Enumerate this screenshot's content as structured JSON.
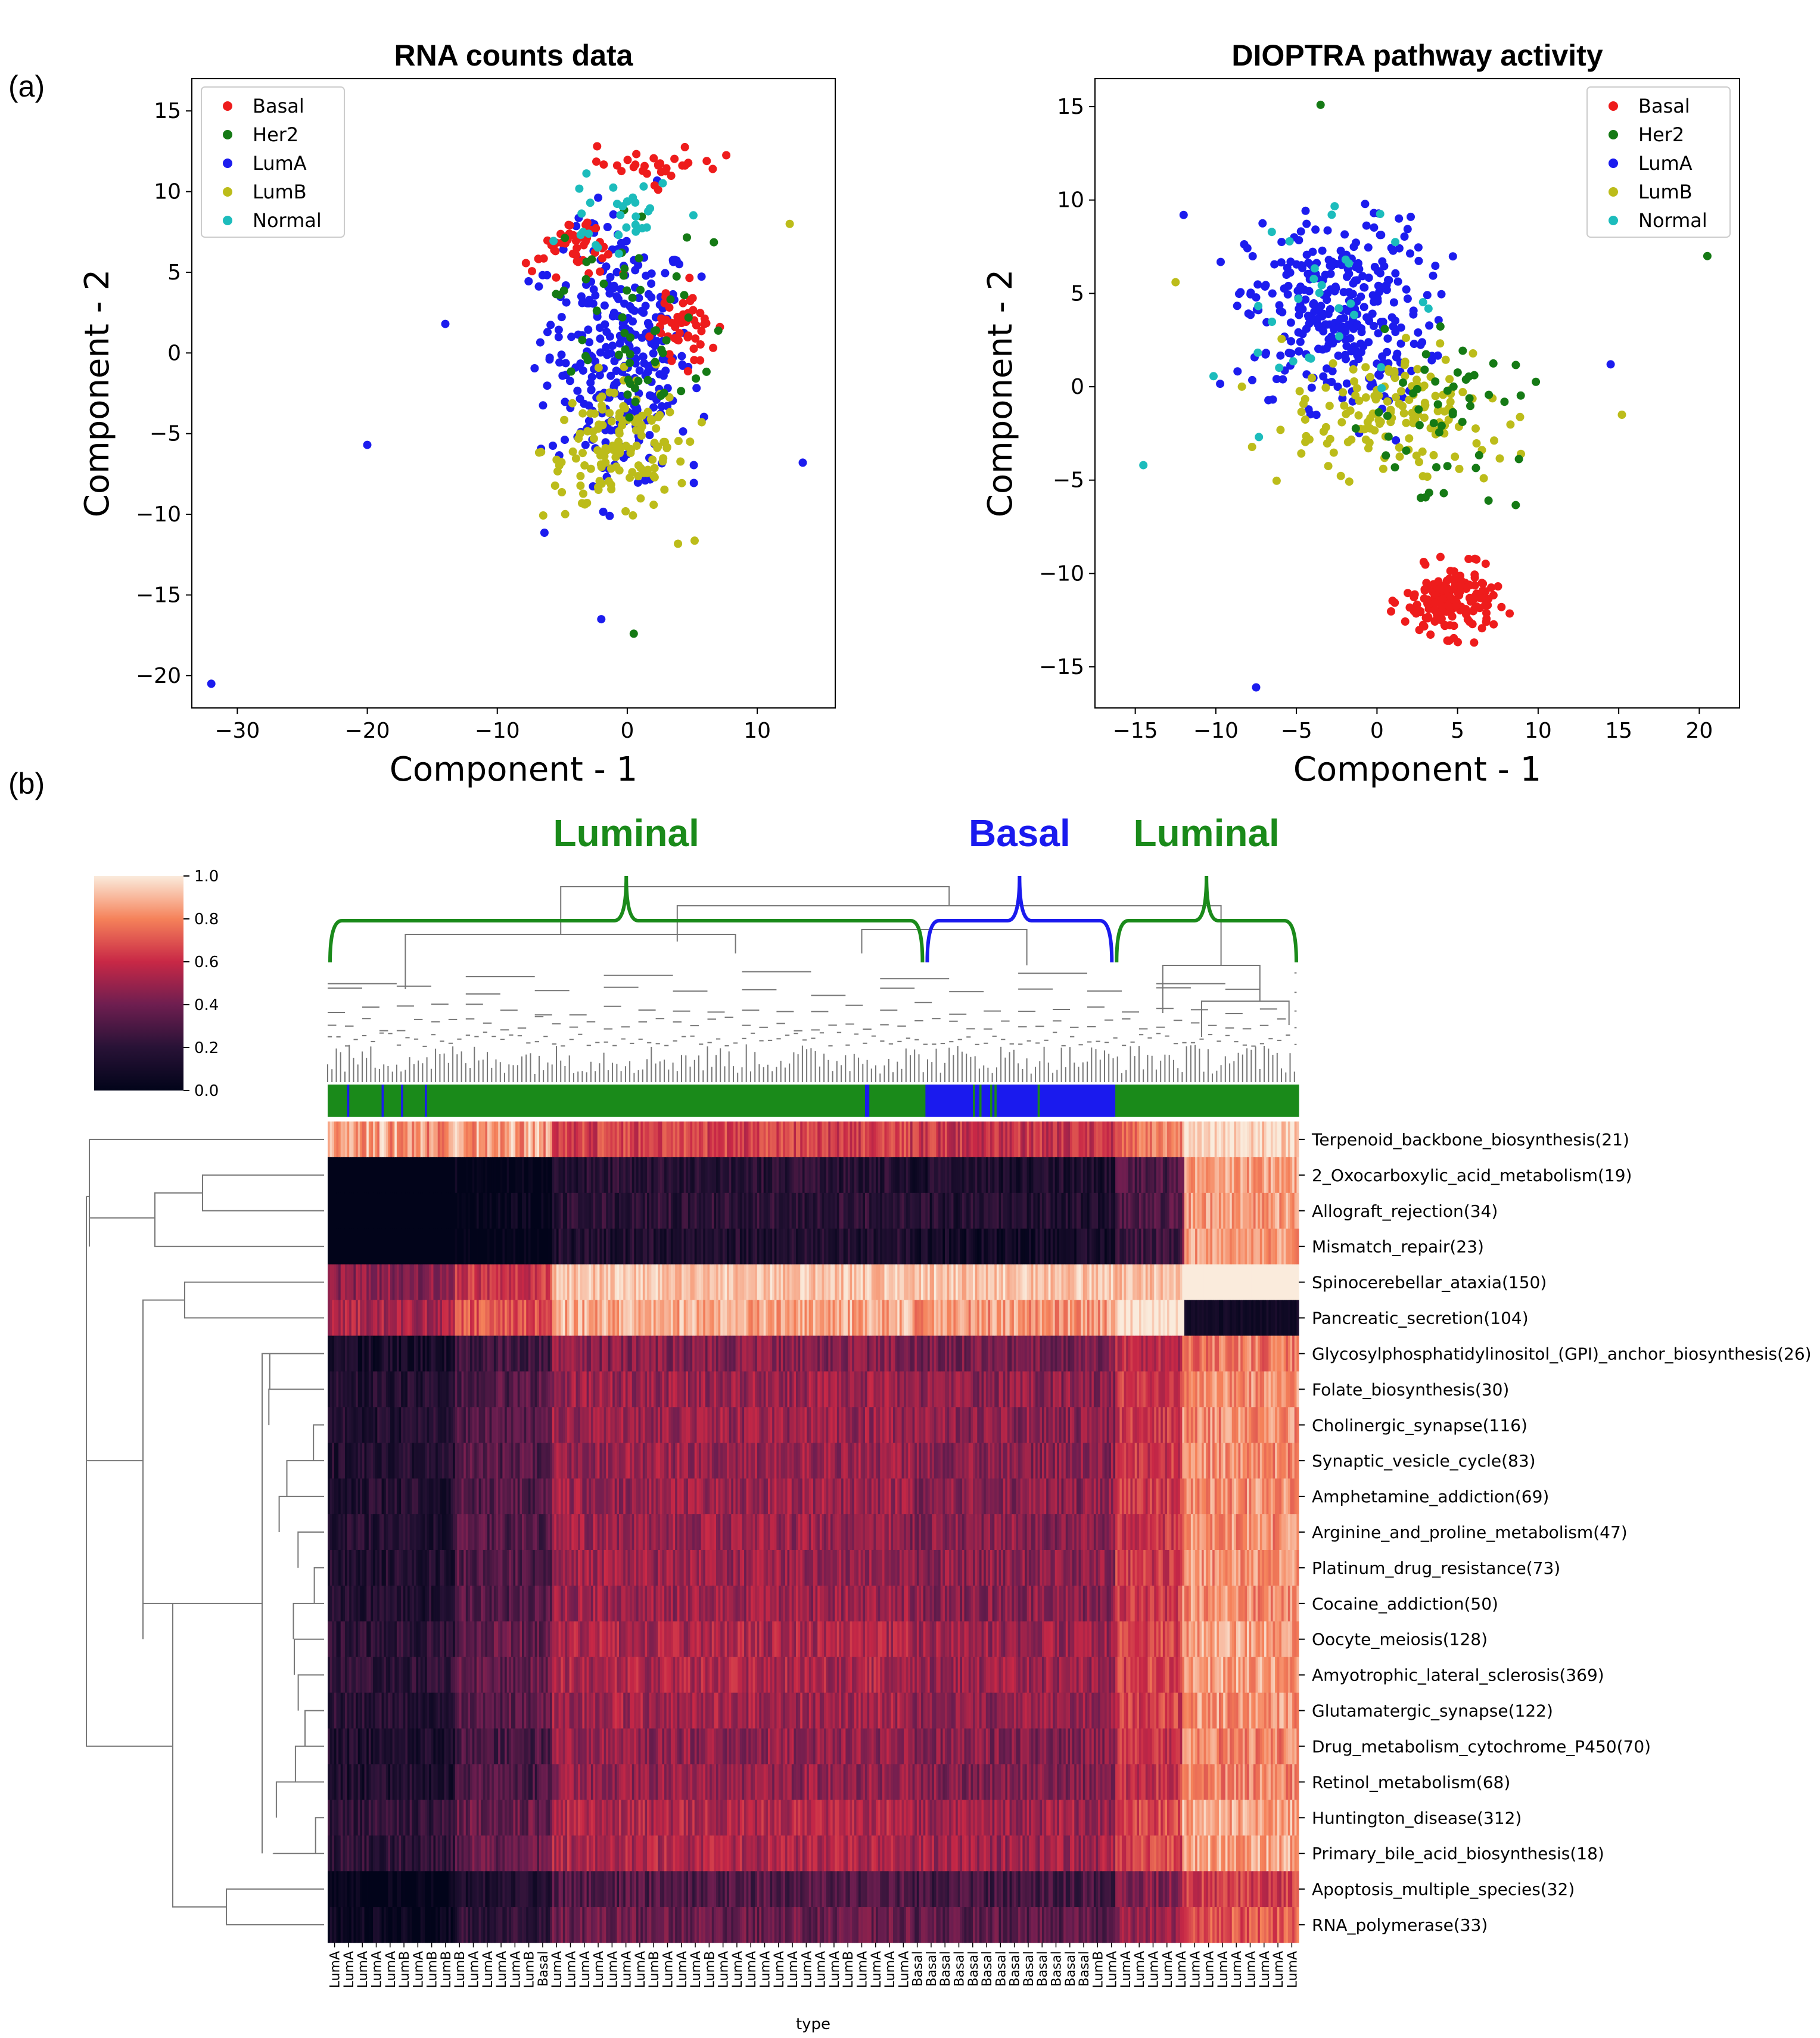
{
  "panel_labels": {
    "a": "(a)",
    "b": "(b)"
  },
  "colors": {
    "Basal": "#ee1c1c",
    "Her2": "#157a15",
    "LumA": "#1c1cee",
    "LumB": "#bcbc1a",
    "Normal": "#1cbcbc",
    "luminal_bracket": "#1a8a1a",
    "basal_bracket": "#1a1aee"
  },
  "chart_data": [
    {
      "type": "scatter",
      "id": "rna",
      "title": "RNA counts data",
      "xlabel": "Component - 1",
      "ylabel": "Component - 2",
      "xlim": [
        -33.5,
        16
      ],
      "ylim": [
        -22,
        17
      ],
      "xticks": [
        -30,
        -20,
        -10,
        0,
        10
      ],
      "yticks": [
        -20,
        -15,
        -10,
        -5,
        0,
        5,
        10,
        15
      ],
      "legend": [
        "Basal",
        "Her2",
        "LumA",
        "LumB",
        "Normal"
      ],
      "legend_position": "top-left",
      "clusters": [
        {
          "cls": "LumA",
          "n": 300,
          "cx": -0.5,
          "cy": 0,
          "sx": 5,
          "sy": 7
        },
        {
          "cls": "LumB",
          "n": 140,
          "cx": -1,
          "cy": -6,
          "sx": 5,
          "sy": 4
        },
        {
          "cls": "Basal",
          "n": 55,
          "cx": 4.5,
          "cy": 2,
          "sx": 2,
          "sy": 2
        },
        {
          "cls": "Basal",
          "n": 45,
          "cx": -4,
          "cy": 6.5,
          "sx": 2.5,
          "sy": 2
        },
        {
          "cls": "Basal",
          "n": 30,
          "cx": 2,
          "cy": 11.5,
          "sx": 4,
          "sy": 1.2
        },
        {
          "cls": "Her2",
          "n": 55,
          "cx": 0,
          "cy": 2,
          "sx": 5,
          "sy": 6
        },
        {
          "cls": "Normal",
          "n": 30,
          "cx": -1,
          "cy": 9,
          "sx": 4,
          "sy": 3
        }
      ],
      "outliers": [
        {
          "cls": "LumA",
          "x": -32,
          "y": -20.5
        },
        {
          "cls": "LumA",
          "x": -20,
          "y": -5.7
        },
        {
          "cls": "LumA",
          "x": 13.5,
          "y": -6.8
        },
        {
          "cls": "Her2",
          "x": 0.5,
          "y": -17.4
        },
        {
          "cls": "LumA",
          "x": -2,
          "y": -16.5
        },
        {
          "cls": "LumA",
          "x": -14,
          "y": 1.8
        },
        {
          "cls": "LumB",
          "x": 12.5,
          "y": 8
        }
      ]
    },
    {
      "type": "scatter",
      "id": "dioptra",
      "title": "DIOPTRA pathway activity",
      "xlabel": "Component - 1",
      "ylabel": "Component - 2",
      "xlim": [
        -17.5,
        22.5
      ],
      "ylim": [
        -17.2,
        16.5
      ],
      "xticks": [
        -15,
        -10,
        -5,
        0,
        5,
        10,
        15,
        20
      ],
      "yticks": [
        -15,
        -10,
        -5,
        0,
        5,
        10,
        15
      ],
      "legend": [
        "Basal",
        "Her2",
        "LumA",
        "LumB",
        "Normal"
      ],
      "legend_position": "top-right",
      "clusters": [
        {
          "cls": "LumA",
          "n": 330,
          "cx": -2.5,
          "cy": 4,
          "sx": 5,
          "sy": 4.5
        },
        {
          "cls": "LumB",
          "n": 150,
          "cx": 1,
          "cy": -1.5,
          "sx": 6,
          "sy": 3
        },
        {
          "cls": "Basal",
          "n": 170,
          "cx": 4.5,
          "cy": -11.5,
          "sx": 2.5,
          "sy": 1.6
        },
        {
          "cls": "Her2",
          "n": 50,
          "cx": 4,
          "cy": -1,
          "sx": 4.5,
          "sy": 4
        },
        {
          "cls": "Normal",
          "n": 30,
          "cx": -4,
          "cy": 4,
          "sx": 5,
          "sy": 5
        }
      ],
      "outliers": [
        {
          "cls": "Her2",
          "x": 20.5,
          "y": 7
        },
        {
          "cls": "LumA",
          "x": -7.5,
          "y": -16.1
        },
        {
          "cls": "Her2",
          "x": -3.5,
          "y": 15.1
        },
        {
          "cls": "LumB",
          "x": 15.2,
          "y": -1.5
        },
        {
          "cls": "LumA",
          "x": 14.5,
          "y": 1.2
        },
        {
          "cls": "Normal",
          "x": -14.5,
          "y": -4.2
        },
        {
          "cls": "LumB",
          "x": -12.5,
          "y": 5.6
        },
        {
          "cls": "LumA",
          "x": -12,
          "y": 9.2
        }
      ]
    },
    {
      "type": "heatmap",
      "id": "clustermap",
      "xlabel": "type",
      "colorbar": {
        "min": 0.0,
        "max": 1.0,
        "ticks": [
          "0.0",
          "0.2",
          "0.4",
          "0.6",
          "0.8",
          "1.0"
        ]
      },
      "group_labels": [
        {
          "text": "Luminal",
          "color": "luminal_bracket"
        },
        {
          "text": "Basal",
          "color": "basal_bracket"
        },
        {
          "text": "Luminal",
          "color": "luminal_bracket"
        }
      ],
      "column_groups": [
        {
          "type": "Luminal",
          "fraction": 0.615
        },
        {
          "type": "Basal",
          "fraction": 0.195
        },
        {
          "type": "Luminal",
          "fraction": 0.19
        }
      ],
      "rows": [
        "Terpenoid_backbone_biosynthesis(21)",
        "2_Oxocarboxylic_acid_metabolism(19)",
        "Allograft_rejection(34)",
        "Mismatch_repair(23)",
        "Spinocerebellar_ataxia(150)",
        "Pancreatic_secretion(104)",
        "Glycosylphosphatidylinositol_(GPI)_anchor_biosynthesis(26)",
        "Folate_biosynthesis(30)",
        "Cholinergic_synapse(116)",
        "Synaptic_vesicle_cycle(83)",
        "Amphetamine_addiction(69)",
        "Arginine_and_proline_metabolism(47)",
        "Platinum_drug_resistance(73)",
        "Cocaine_addiction(50)",
        "Oocyte_meiosis(128)",
        "Amyotrophic_lateral_sclerosis(369)",
        "Glutamatergic_synapse(122)",
        "Drug_metabolism_cytochrome_P450(70)",
        "Retinol_metabolism(68)",
        "Huntington_disease(312)",
        "Primary_bile_acid_biosynthesis(18)",
        "Apoptosis_multiple_species(32)",
        "RNA_polymerase(33)"
      ],
      "x_tick_labels": [
        "LumA",
        "LumA",
        "LumA",
        "LumA",
        "LumA",
        "LumB",
        "LumA",
        "LumB",
        "LumB",
        "LumB",
        "LumA",
        "LumA",
        "LumA",
        "LumA",
        "LumB",
        "Basal",
        "LumA",
        "LumA",
        "LumA",
        "LumA",
        "LumA",
        "LumA",
        "LumA",
        "LumB",
        "LumA",
        "LumA",
        "LumA",
        "LumB",
        "LumA",
        "LumA",
        "LumA",
        "LumA",
        "LumA",
        "LumA",
        "LumA",
        "LumA",
        "LumA",
        "LumB",
        "LumA",
        "LumA",
        "LumA",
        "LumA",
        "Basal",
        "Basal",
        "Basal",
        "Basal",
        "Basal",
        "Basal",
        "Basal",
        "Basal",
        "Basal",
        "Basal",
        "Basal",
        "Basal",
        "Basal",
        "LumB",
        "LumA",
        "LumA",
        "LumA",
        "LumA",
        "LumA",
        "LumA",
        "LumA",
        "LumA",
        "LumA",
        "LumA",
        "LumA",
        "LumA",
        "LumA",
        "LumA"
      ]
    }
  ]
}
